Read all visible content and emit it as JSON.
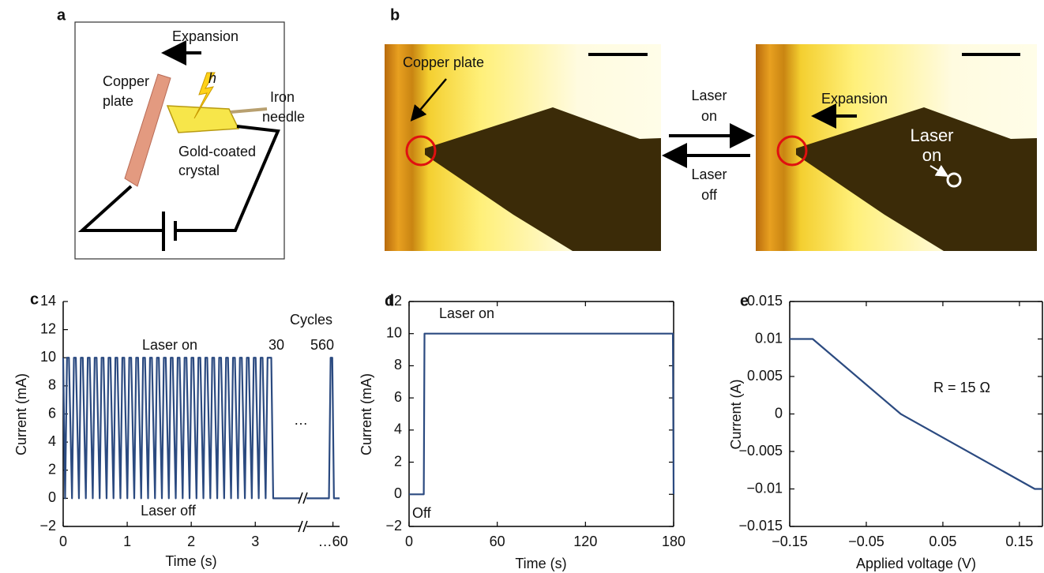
{
  "panels": {
    "a": {
      "label": "a",
      "expansion": "Expansion",
      "copper_plate": [
        "Copper",
        "plate"
      ],
      "h": "h",
      "iron_needle": [
        "Iron",
        "needle"
      ],
      "gold_crystal": [
        "Gold-coated",
        "crystal"
      ]
    },
    "b": {
      "label": "b",
      "copper_plate": "Copper plate",
      "laser_on": [
        "Laser",
        "on"
      ],
      "laser_off": [
        "Laser",
        "off"
      ],
      "expansion": "Expansion",
      "laser_on_spot": [
        "Laser",
        "on"
      ]
    }
  },
  "chart_data": [
    {
      "type": "line",
      "panel_label": "c",
      "y_label": "Current (mA)",
      "x_label": "Time (s)",
      "color": "#2b4a80",
      "annotations": [
        "Laser on",
        "Laser off",
        "Cycles",
        "30",
        "560",
        "…"
      ],
      "ylim": [
        -2,
        14
      ],
      "yticks": [
        {
          "value": -2,
          "label": "−2"
        },
        0,
        2,
        4,
        6,
        8,
        10,
        12,
        14
      ],
      "x_segments": [
        {
          "xlim": [
            0,
            3.7
          ],
          "xticks": [
            0,
            1,
            2,
            3
          ],
          "x": [
            0,
            0.03,
            0.06,
            0.09,
            0.138,
            0.168,
            0.198,
            0.246,
            0.276,
            0.306,
            0.354,
            0.384,
            0.414,
            0.462,
            0.492,
            0.522,
            0.57,
            0.6,
            0.63,
            0.678,
            0.708,
            0.738,
            0.786,
            0.816,
            0.846,
            0.894,
            0.924,
            0.954,
            1.002,
            1.032,
            1.062,
            1.11,
            1.14,
            1.17,
            1.218,
            1.248,
            1.278,
            1.326,
            1.356,
            1.386,
            1.434,
            1.464,
            1.494,
            1.542,
            1.572,
            1.602,
            1.65,
            1.68,
            1.71,
            1.758,
            1.788,
            1.818,
            1.866,
            1.896,
            1.926,
            1.974,
            2.004,
            2.034,
            2.082,
            2.112,
            2.142,
            2.19,
            2.22,
            2.25,
            2.298,
            2.328,
            2.358,
            2.406,
            2.436,
            2.466,
            2.514,
            2.544,
            2.574,
            2.622,
            2.652,
            2.682,
            2.73,
            2.76,
            2.79,
            2.838,
            2.868,
            2.898,
            2.946,
            2.976,
            3.006,
            3.054,
            3.084,
            3.114,
            3.162,
            3.192,
            3.25,
            3.28,
            3.7
          ],
          "values": [
            10,
            0,
            10,
            10,
            0,
            10,
            10,
            0,
            10,
            10,
            0,
            10,
            10,
            0,
            10,
            10,
            0,
            10,
            10,
            0,
            10,
            10,
            0,
            10,
            10,
            0,
            10,
            10,
            0,
            10,
            10,
            0,
            10,
            10,
            0,
            10,
            10,
            0,
            10,
            10,
            0,
            10,
            10,
            0,
            10,
            10,
            0,
            10,
            10,
            0,
            10,
            10,
            0,
            10,
            10,
            0,
            10,
            10,
            0,
            10,
            10,
            0,
            10,
            10,
            0,
            10,
            10,
            0,
            10,
            10,
            0,
            10,
            10,
            0,
            10,
            10,
            0,
            10,
            10,
            0,
            10,
            10,
            0,
            10,
            10,
            0,
            10,
            10,
            0,
            10,
            10,
            0,
            0
          ]
        },
        {
          "xlim": [
            59.2,
            60.2
          ],
          "xticks": [
            {
              "value": 60,
              "label": "…60"
            }
          ],
          "x": [
            59.2,
            59.88,
            59.93,
            59.98,
            60.03,
            60.2
          ],
          "values": [
            0,
            0,
            10,
            10,
            0,
            0
          ]
        }
      ]
    },
    {
      "type": "line",
      "panel_label": "d",
      "y_label": "Current (mA)",
      "x_label": "Time (s)",
      "color": "#2b4a80",
      "annotations": [
        "Laser on",
        "Off"
      ],
      "xlim": [
        0,
        180
      ],
      "xticks": [
        0,
        60,
        120,
        180
      ],
      "ylim": [
        -2,
        12
      ],
      "yticks": [
        {
          "value": -2,
          "label": "−2"
        },
        0,
        2,
        4,
        6,
        8,
        10,
        12
      ],
      "x": [
        0,
        10,
        10.5,
        179.5,
        180
      ],
      "values": [
        0,
        0,
        10,
        10,
        0
      ]
    },
    {
      "type": "line",
      "panel_label": "e",
      "y_label": "Current (A)",
      "x_label": "Applied voltage (V)",
      "color": "#2b4a80",
      "annotations": [
        "R = 15 Ω"
      ],
      "xlim": [
        -0.15,
        0.18
      ],
      "xticks": [
        {
          "value": -0.15,
          "label": "−0.15"
        },
        {
          "value": -0.05,
          "label": "−0.05"
        },
        0.05,
        0.15
      ],
      "ylim": [
        -0.015,
        0.015
      ],
      "yticks": [
        {
          "value": -0.015,
          "label": "−0.015"
        },
        {
          "value": -0.01,
          "label": "−0.01"
        },
        {
          "value": -0.005,
          "label": "−0.005"
        },
        0,
        0.005,
        0.01,
        0.015
      ],
      "x": [
        -0.15,
        -0.12,
        -0.005,
        0.17,
        0.18
      ],
      "values": [
        0.01,
        0.01,
        0,
        -0.01,
        -0.01
      ]
    }
  ]
}
